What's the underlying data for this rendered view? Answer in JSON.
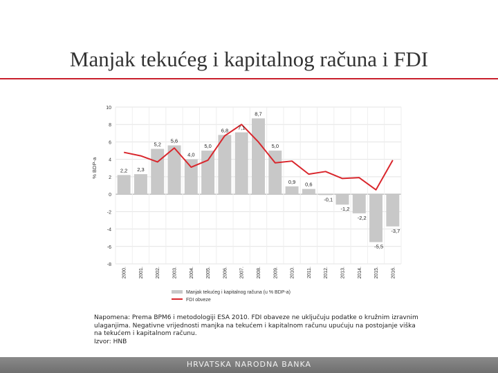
{
  "slide": {
    "title": "Manjak tekućeg i kapitalnog računa i FDI",
    "note": "Napomena: Prema BPM6 i metodologiji ESA 2010. FDI obaveze ne uključuju podatke o kružnim izravnim ulaganjima. Negativne vrijednosti manjka na tekućem i kapitalnom računu upućuju na postojanje viška na tekućem i kapitalnom računu.",
    "source": "Izvor: HNB",
    "footer": "HRVATSKA NARODNA BANKA"
  },
  "colors": {
    "bar": "#c8c8c8",
    "line": "#d9262c",
    "accent_rule": "#c81e2a",
    "footer": "#7a7a7a"
  },
  "chart_data": {
    "type": "bar",
    "ylabel": "% BDP-a",
    "ylim": [
      -8,
      10
    ],
    "yticks": [
      "10",
      "8",
      "6",
      "4",
      "2",
      "0",
      "-2",
      "-4",
      "-6",
      "-8"
    ],
    "categories": [
      "2000.",
      "2001.",
      "2002.",
      "2003.",
      "2004.",
      "2005.",
      "2006.",
      "2007.",
      "2008.",
      "2009.",
      "2010.",
      "2011.",
      "2012.",
      "2013.",
      "2014.",
      "2015.",
      "2016."
    ],
    "series": [
      {
        "name": "Manjak tekućeg i kapitalnog računa (u % BDP-a)",
        "kind": "bar",
        "values": [
          2.2,
          2.3,
          5.2,
          5.6,
          4.0,
          5.0,
          6.8,
          7.1,
          8.7,
          5.0,
          0.9,
          0.6,
          -0.1,
          -1.2,
          -2.2,
          -5.5,
          -3.7
        ],
        "labels": [
          "2,2",
          "2,3",
          "5,2",
          "5,6",
          "4,0",
          "5,0",
          "6,8",
          "7,1",
          "8,7",
          "5,0",
          "0,9",
          "0,6",
          "-0,1",
          "-1,2",
          "-2,2",
          "-5,5",
          "-3,7"
        ]
      },
      {
        "name": "FDI obveze",
        "kind": "line",
        "values": [
          4.8,
          4.4,
          3.7,
          5.3,
          3.1,
          3.9,
          6.7,
          8.0,
          6.0,
          3.6,
          3.8,
          2.3,
          2.6,
          1.8,
          1.9,
          0.5,
          3.9
        ]
      }
    ],
    "grid": true,
    "legend": "bottom"
  }
}
